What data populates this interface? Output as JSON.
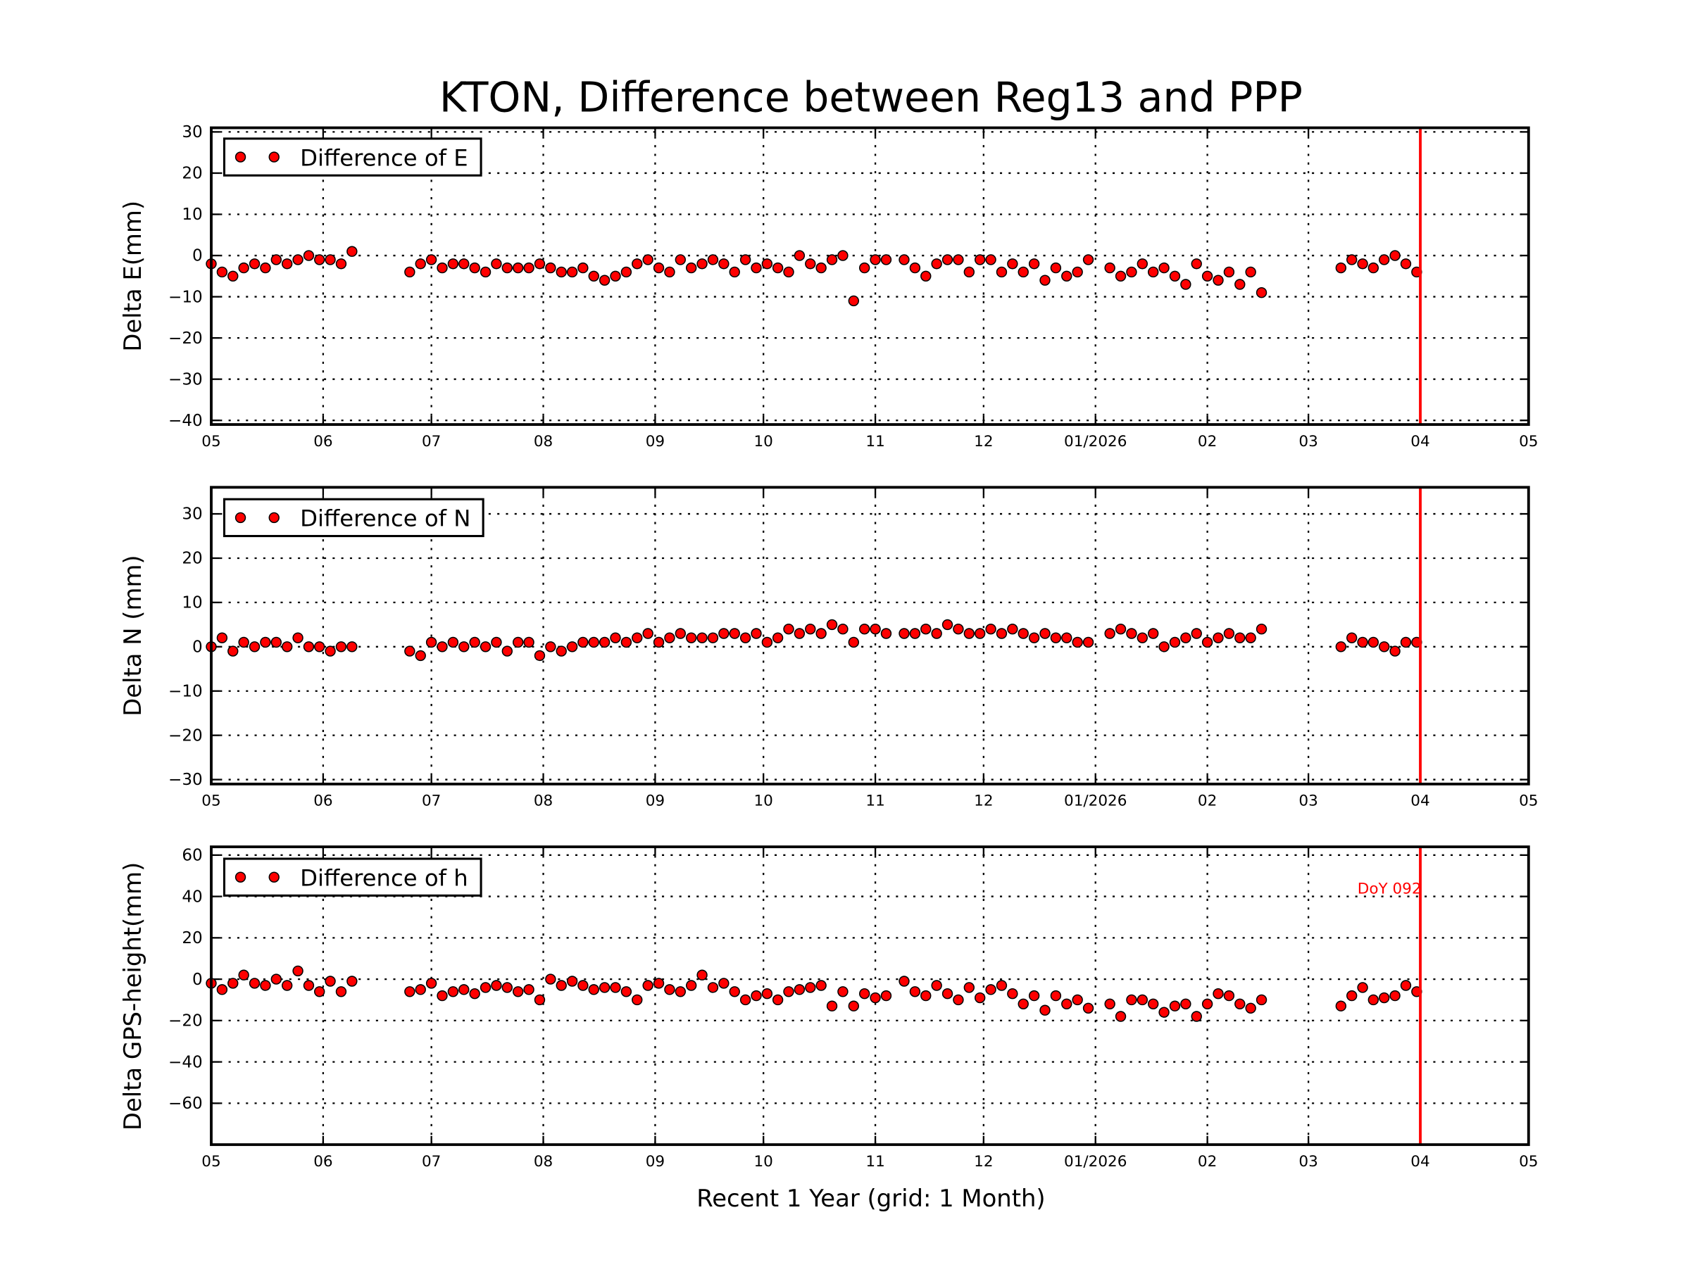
{
  "chart_data": [
    {
      "type": "scatter",
      "title": "KTON, Difference between Reg13 and PPP",
      "ylabel": "Delta E(mm)",
      "legend": {
        "label": "Difference of E",
        "placement": "top-left"
      },
      "ylim": [
        -41,
        31
      ],
      "yticks": [
        -40,
        -30,
        -20,
        -10,
        0,
        10,
        20,
        30
      ],
      "series_key": "E"
    },
    {
      "type": "scatter",
      "ylabel": "Delta N (mm)",
      "legend": {
        "label": "Difference of N",
        "placement": "top-left"
      },
      "ylim": [
        -31,
        36
      ],
      "yticks": [
        -30,
        -20,
        -10,
        0,
        10,
        20,
        30
      ],
      "series_key": "N"
    },
    {
      "type": "scatter",
      "ylabel": "Delta GPS-height(mm)",
      "xlabel": "Recent 1 Year (grid: 1 Month)",
      "legend": {
        "label": "Difference of h",
        "placement": "top-left"
      },
      "ylim": [
        -80,
        64
      ],
      "yticks": [
        -60,
        -40,
        -20,
        0,
        20,
        40,
        60
      ],
      "series_key": "h",
      "annotation": {
        "text": "DoY 092",
        "date": "2026-04-02",
        "value": 44
      }
    }
  ],
  "shared": {
    "xlim": [
      "2025-05-01",
      "2026-05-01"
    ],
    "xticks": [
      {
        "date": "2025-05-01",
        "label": "05"
      },
      {
        "date": "2025-06-01",
        "label": "06"
      },
      {
        "date": "2025-07-01",
        "label": "07"
      },
      {
        "date": "2025-08-01",
        "label": "08"
      },
      {
        "date": "2025-09-01",
        "label": "09"
      },
      {
        "date": "2025-10-01",
        "label": "10"
      },
      {
        "date": "2025-11-01",
        "label": "11"
      },
      {
        "date": "2025-12-01",
        "label": "12"
      },
      {
        "date": "2026-01-01",
        "label": "01/2026"
      },
      {
        "date": "2026-02-01",
        "label": "02"
      },
      {
        "date": "2026-03-01",
        "label": "03"
      },
      {
        "date": "2026-04-01",
        "label": "04"
      },
      {
        "date": "2026-05-01",
        "label": "05"
      }
    ],
    "vline_date": "2026-04-01",
    "grid": true,
    "colors": {
      "marker_fill": "#ff0000",
      "marker_edge": "#000000",
      "vline": "#ff0000",
      "annotation": "#ff0000"
    },
    "dates": [
      "2025-05-01",
      "2025-05-04",
      "2025-05-07",
      "2025-05-10",
      "2025-05-13",
      "2025-05-16",
      "2025-05-19",
      "2025-05-22",
      "2025-05-25",
      "2025-05-28",
      "2025-05-31",
      "2025-06-03",
      "2025-06-06",
      "2025-06-09",
      "2025-06-25",
      "2025-06-28",
      "2025-07-01",
      "2025-07-04",
      "2025-07-07",
      "2025-07-10",
      "2025-07-13",
      "2025-07-16",
      "2025-07-19",
      "2025-07-22",
      "2025-07-25",
      "2025-07-28",
      "2025-07-31",
      "2025-08-03",
      "2025-08-06",
      "2025-08-09",
      "2025-08-12",
      "2025-08-15",
      "2025-08-18",
      "2025-08-21",
      "2025-08-24",
      "2025-08-27",
      "2025-08-30",
      "2025-09-02",
      "2025-09-05",
      "2025-09-08",
      "2025-09-11",
      "2025-09-14",
      "2025-09-17",
      "2025-09-20",
      "2025-09-23",
      "2025-09-26",
      "2025-09-29",
      "2025-10-02",
      "2025-10-05",
      "2025-10-08",
      "2025-10-11",
      "2025-10-14",
      "2025-10-17",
      "2025-10-20",
      "2025-10-23",
      "2025-10-26",
      "2025-10-29",
      "2025-11-01",
      "2025-11-04",
      "2025-11-09",
      "2025-11-12",
      "2025-11-15",
      "2025-11-18",
      "2025-11-21",
      "2025-11-24",
      "2025-11-27",
      "2025-11-30",
      "2025-12-03",
      "2025-12-06",
      "2025-12-09",
      "2025-12-12",
      "2025-12-15",
      "2025-12-18",
      "2025-12-21",
      "2025-12-24",
      "2025-12-27",
      "2025-12-30",
      "2026-01-05",
      "2026-01-08",
      "2026-01-11",
      "2026-01-14",
      "2026-01-17",
      "2026-01-20",
      "2026-01-23",
      "2026-01-26",
      "2026-01-29",
      "2026-02-01",
      "2026-02-04",
      "2026-02-07",
      "2026-02-10",
      "2026-02-13",
      "2026-02-16",
      "2026-03-10",
      "2026-03-13",
      "2026-03-16",
      "2026-03-19",
      "2026-03-22",
      "2026-03-25",
      "2026-03-28",
      "2026-03-31"
    ],
    "E": [
      -2,
      -4,
      -5,
      -3,
      -2,
      -3,
      -1,
      -2,
      -1,
      0,
      -1,
      -1,
      -2,
      1,
      -4,
      -2,
      -1,
      -3,
      -2,
      -2,
      -3,
      -4,
      -2,
      -3,
      -3,
      -3,
      -2,
      -3,
      -4,
      -4,
      -3,
      -5,
      -6,
      -5,
      -4,
      -2,
      -1,
      -3,
      -4,
      -1,
      -3,
      -2,
      -1,
      -2,
      -4,
      -1,
      -3,
      -2,
      -3,
      -4,
      0,
      -2,
      -3,
      -1,
      0,
      -11,
      -3,
      -1,
      -1,
      -1,
      -3,
      -5,
      -2,
      -1,
      -1,
      -4,
      -1,
      -1,
      -4,
      -2,
      -4,
      -2,
      -6,
      -3,
      -5,
      -4,
      -1,
      -3,
      -5,
      -4,
      -2,
      -4,
      -3,
      -5,
      -7,
      -2,
      -5,
      -6,
      -4,
      -7,
      -4,
      -9,
      -3,
      -1,
      -2,
      -3,
      -1,
      0,
      -2,
      -4
    ],
    "N": [
      0,
      2,
      -1,
      1,
      0,
      1,
      1,
      0,
      2,
      0,
      0,
      -1,
      0,
      0,
      -1,
      -2,
      1,
      0,
      1,
      0,
      1,
      0,
      1,
      -1,
      1,
      1,
      -2,
      0,
      -1,
      0,
      1,
      1,
      1,
      2,
      1,
      2,
      3,
      1,
      2,
      3,
      2,
      2,
      2,
      3,
      3,
      2,
      3,
      1,
      2,
      4,
      3,
      4,
      3,
      5,
      4,
      1,
      4,
      4,
      3,
      3,
      3,
      4,
      3,
      5,
      4,
      3,
      3,
      4,
      3,
      4,
      3,
      2,
      3,
      2,
      2,
      1,
      1,
      3,
      4,
      3,
      2,
      3,
      0,
      1,
      2,
      3,
      1,
      2,
      3,
      2,
      2,
      4,
      0,
      2,
      1,
      1,
      0,
      -1,
      1,
      1
    ],
    "h": [
      -2,
      -5,
      -2,
      2,
      -2,
      -3,
      0,
      -3,
      4,
      -3,
      -6,
      -1,
      -6,
      -1,
      -6,
      -5,
      -2,
      -8,
      -6,
      -5,
      -7,
      -4,
      -3,
      -4,
      -6,
      -5,
      -10,
      0,
      -3,
      -1,
      -3,
      -5,
      -4,
      -4,
      -6,
      -10,
      -3,
      -2,
      -5,
      -6,
      -3,
      2,
      -4,
      -2,
      -6,
      -10,
      -8,
      -7,
      -10,
      -6,
      -5,
      -4,
      -3,
      -13,
      -6,
      -13,
      -7,
      -9,
      -8,
      -1,
      -6,
      -8,
      -3,
      -7,
      -10,
      -4,
      -9,
      -5,
      -3,
      -7,
      -12,
      -8,
      -15,
      -8,
      -12,
      -10,
      -14,
      -12,
      -18,
      -10,
      -10,
      -12,
      -16,
      -13,
      -12,
      -18,
      -12,
      -7,
      -8,
      -12,
      -14,
      -10,
      -13,
      -8,
      -4,
      -10,
      -9,
      -8,
      -3,
      -6
    ]
  }
}
